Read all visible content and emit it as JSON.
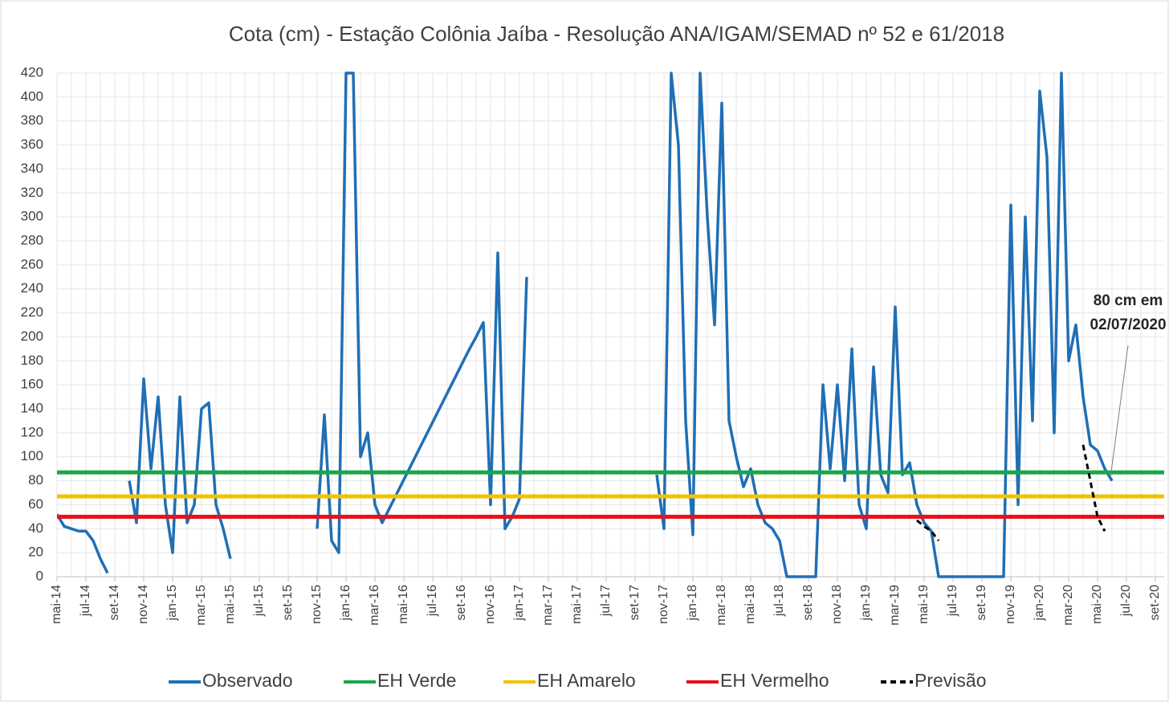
{
  "chart_data": {
    "type": "line",
    "title": "Cota (cm) - Estação Colônia Jaíba - Resolução ANA/IGAM/SEMAD nº 52 e 61/2018",
    "categories": [
      "mai-14",
      null,
      null,
      null,
      "jul-14",
      null,
      null,
      null,
      "set-14",
      null,
      null,
      null,
      "nov-14",
      null,
      null,
      null,
      "jan-15",
      null,
      null,
      null,
      "mar-15",
      null,
      null,
      null,
      "mai-15",
      null,
      null,
      null,
      "jul-15",
      null,
      null,
      null,
      "set-15",
      null,
      null,
      null,
      "nov-15",
      null,
      null,
      null,
      "jan-16",
      null,
      null,
      null,
      "mar-16",
      null,
      null,
      null,
      "mai-16",
      null,
      null,
      null,
      "jul-16",
      null,
      null,
      null,
      "set-16",
      null,
      null,
      null,
      "nov-16",
      null,
      null,
      null,
      "jan-17",
      null,
      null,
      null,
      "mar-17",
      null,
      null,
      null,
      "mai-17",
      null,
      null,
      null,
      "jul-17",
      null,
      null,
      null,
      "set-17",
      null,
      null,
      null,
      "nov-17",
      null,
      null,
      null,
      "jan-18",
      null,
      null,
      null,
      "mar-18",
      null,
      null,
      null,
      "mai-18",
      null,
      null,
      null,
      "jul-18",
      null,
      null,
      null,
      "set-18",
      null,
      null,
      null,
      "nov-18",
      null,
      null,
      null,
      "jan-19",
      null,
      null,
      null,
      "mar-19",
      null,
      null,
      null,
      "mai-19",
      null,
      null,
      null,
      "jul-19",
      null,
      null,
      null,
      "set-19",
      null,
      null,
      null,
      "nov-19",
      null,
      null,
      null,
      "jan-20",
      null,
      null,
      null,
      "mar-20",
      null,
      null,
      null,
      "mai-20",
      null,
      null,
      null,
      "jul-20",
      null,
      null,
      null,
      "set-20",
      null
    ],
    "series": [
      {
        "name": "Observado",
        "color": "#1f6fb5",
        "values": [
          52,
          42,
          40,
          38,
          38,
          30,
          15,
          3,
          null,
          null,
          80,
          45,
          165,
          90,
          150,
          60,
          20,
          150,
          45,
          60,
          140,
          145,
          60,
          40,
          15,
          null,
          null,
          null,
          null,
          null,
          null,
          null,
          null,
          null,
          null,
          null,
          40,
          135,
          30,
          20,
          420,
          420,
          100,
          120,
          60,
          45,
          57,
          69,
          81,
          93,
          105,
          117,
          129,
          141,
          153,
          165,
          177,
          189,
          200,
          212,
          60,
          270,
          40,
          50,
          65,
          250,
          null,
          null,
          null,
          null,
          null,
          null,
          null,
          null,
          null,
          null,
          null,
          null,
          null,
          null,
          null,
          null,
          null,
          85,
          40,
          420,
          360,
          130,
          35,
          420,
          300,
          210,
          395,
          130,
          100,
          75,
          90,
          60,
          45,
          40,
          30,
          0,
          0,
          0,
          0,
          0,
          160,
          90,
          160,
          80,
          190,
          60,
          40,
          175,
          85,
          70,
          225,
          85,
          95,
          60,
          45,
          38,
          0,
          0,
          0,
          0,
          0,
          0,
          0,
          0,
          0,
          0,
          310,
          60,
          300,
          130,
          405,
          350,
          120,
          420,
          180,
          210,
          150,
          110,
          105,
          90,
          80,
          null,
          null,
          null,
          null,
          null,
          null,
          null
        ]
      },
      {
        "name": "EH Verde",
        "color": "#1aa64a",
        "value": 87
      },
      {
        "name": "EH Amarelo",
        "color": "#f2c300",
        "value": 67
      },
      {
        "name": "EH Vermelho",
        "color": "#e8101a",
        "value": 50
      },
      {
        "name": "Previsão",
        "color": "#000000",
        "dashed": true,
        "values": [
          null,
          null,
          null,
          null,
          null,
          null,
          null,
          null,
          null,
          null,
          null,
          null,
          null,
          null,
          null,
          null,
          null,
          null,
          null,
          null,
          null,
          null,
          null,
          null,
          null,
          null,
          null,
          null,
          null,
          null,
          null,
          null,
          null,
          null,
          null,
          null,
          null,
          null,
          null,
          null,
          null,
          null,
          null,
          null,
          null,
          null,
          null,
          null,
          null,
          null,
          null,
          null,
          null,
          null,
          null,
          null,
          null,
          null,
          null,
          null,
          null,
          null,
          null,
          null,
          null,
          null,
          null,
          null,
          null,
          null,
          null,
          null,
          null,
          null,
          null,
          null,
          null,
          null,
          null,
          null,
          null,
          null,
          null,
          null,
          null,
          null,
          null,
          null,
          null,
          null,
          null,
          null,
          null,
          null,
          null,
          null,
          null,
          null,
          null,
          null,
          null,
          null,
          null,
          null,
          null,
          null,
          null,
          null,
          null,
          null,
          null,
          null,
          null,
          null,
          null,
          null,
          null,
          null,
          null,
          47,
          42,
          38,
          30,
          null,
          null,
          null,
          null,
          null,
          null,
          null,
          null,
          null,
          null,
          null,
          null,
          null,
          null,
          null,
          null,
          null,
          null,
          null,
          110,
          80,
          50,
          38,
          null,
          null,
          null,
          null,
          null,
          null,
          null,
          null
        ]
      }
    ],
    "annotation": [
      "80 cm em",
      "02/07/2020"
    ],
    "ylim": [
      0,
      420
    ],
    "yticks": [
      0,
      20,
      40,
      60,
      80,
      100,
      120,
      140,
      160,
      180,
      200,
      220,
      240,
      260,
      280,
      300,
      320,
      340,
      360,
      380,
      400,
      420
    ],
    "grid": true,
    "legend": "bottom"
  }
}
